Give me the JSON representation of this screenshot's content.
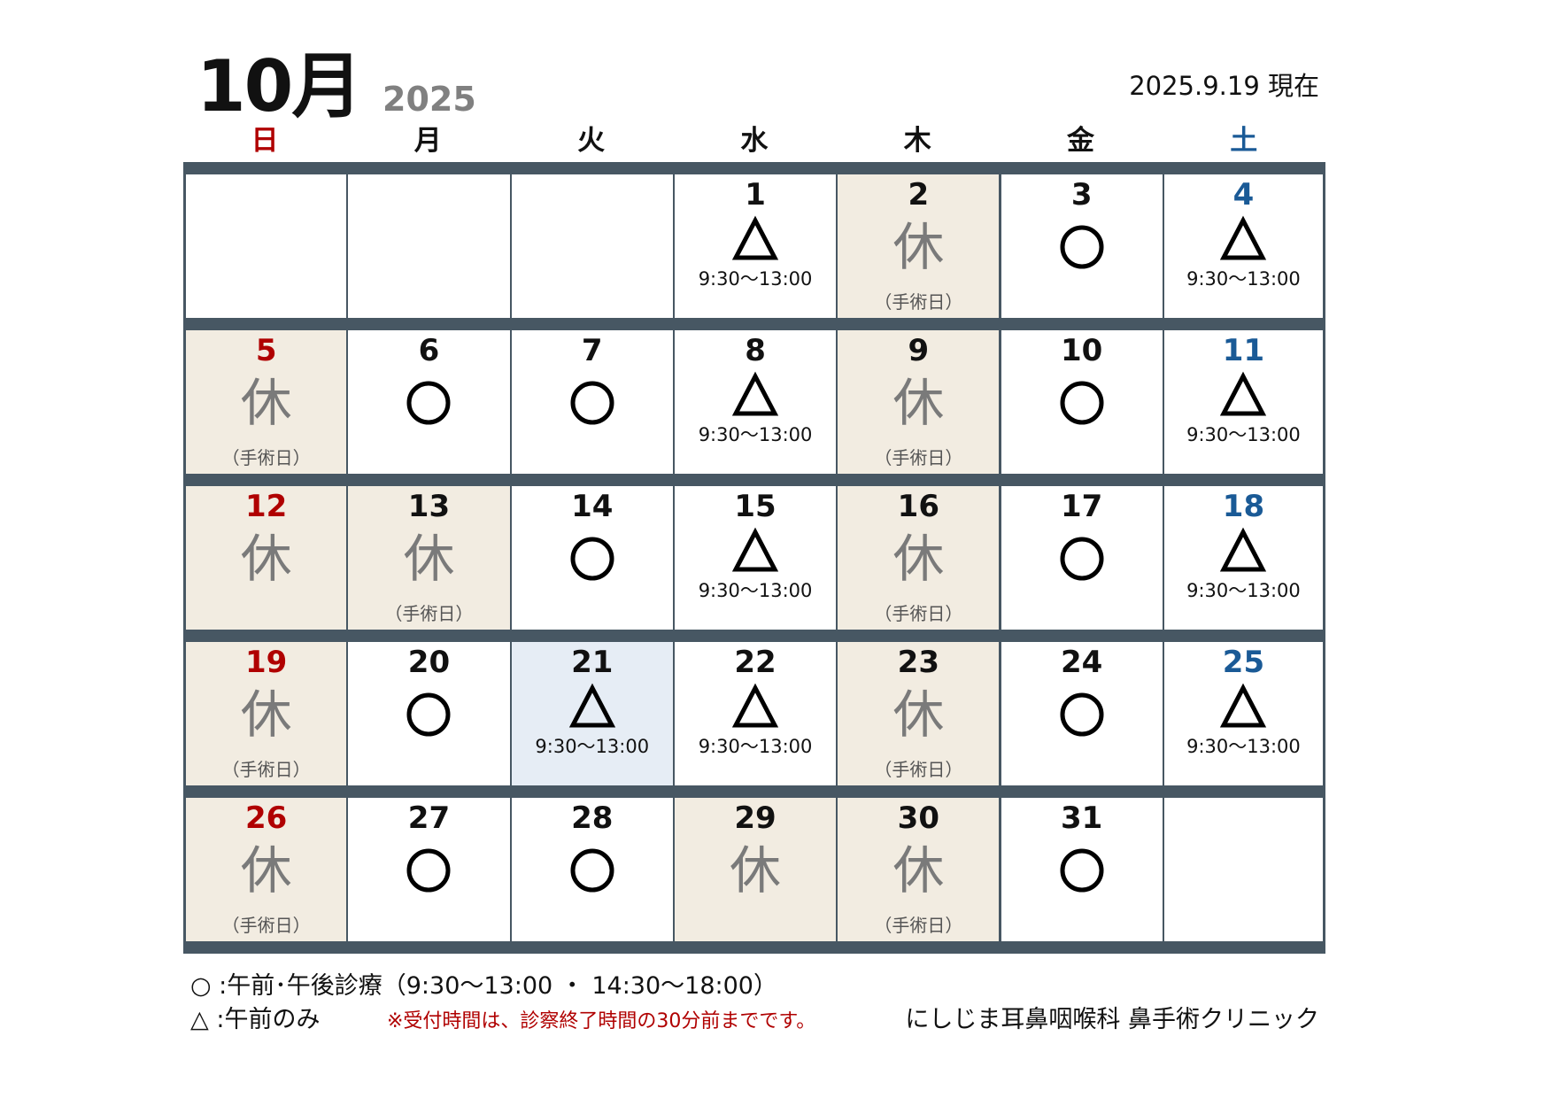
{
  "header": {
    "month": "10月",
    "year": "2025",
    "as_of": "2025.9.19 現在"
  },
  "weekdays": [
    {
      "label": "日",
      "color": "#b00000"
    },
    {
      "label": "月",
      "color": "#111111"
    },
    {
      "label": "火",
      "color": "#111111"
    },
    {
      "label": "水",
      "color": "#111111"
    },
    {
      "label": "木",
      "color": "#111111"
    },
    {
      "label": "金",
      "color": "#111111"
    },
    {
      "label": "土",
      "color": "#1a5a96"
    }
  ],
  "colors": {
    "bar": "#475763",
    "closed_bg": "#f2ece1",
    "today_bg": "#e6edf5",
    "sunday": "#b00000",
    "saturday": "#1a5a96"
  },
  "closed_label": "休",
  "cells": [
    null,
    null,
    null,
    {
      "day": "1",
      "status": "triangle",
      "time": "9:30〜13:00"
    },
    {
      "day": "2",
      "status": "closed",
      "note": "（手術日）"
    },
    {
      "day": "3",
      "status": "circle"
    },
    {
      "day": "4",
      "status": "triangle",
      "time": "9:30〜13:00"
    },
    {
      "day": "5",
      "status": "closed",
      "note": "（手術日）"
    },
    {
      "day": "6",
      "status": "circle"
    },
    {
      "day": "7",
      "status": "circle"
    },
    {
      "day": "8",
      "status": "triangle",
      "time": "9:30〜13:00"
    },
    {
      "day": "9",
      "status": "closed",
      "note": "（手術日）"
    },
    {
      "day": "10",
      "status": "circle"
    },
    {
      "day": "11",
      "status": "triangle",
      "time": "9:30〜13:00"
    },
    {
      "day": "12",
      "status": "closed"
    },
    {
      "day": "13",
      "status": "closed",
      "note": "（手術日）"
    },
    {
      "day": "14",
      "status": "circle"
    },
    {
      "day": "15",
      "status": "triangle",
      "time": "9:30〜13:00"
    },
    {
      "day": "16",
      "status": "closed",
      "note": "（手術日）"
    },
    {
      "day": "17",
      "status": "circle"
    },
    {
      "day": "18",
      "status": "triangle",
      "time": "9:30〜13:00"
    },
    {
      "day": "19",
      "status": "closed",
      "note": "（手術日）"
    },
    {
      "day": "20",
      "status": "circle"
    },
    {
      "day": "21",
      "status": "triangle",
      "time": "9:30〜13:00",
      "highlight": true
    },
    {
      "day": "22",
      "status": "triangle",
      "time": "9:30〜13:00"
    },
    {
      "day": "23",
      "status": "closed",
      "note": "（手術日）"
    },
    {
      "day": "24",
      "status": "circle"
    },
    {
      "day": "25",
      "status": "triangle",
      "time": "9:30〜13:00"
    },
    {
      "day": "26",
      "status": "closed",
      "note": "（手術日）"
    },
    {
      "day": "27",
      "status": "circle"
    },
    {
      "day": "28",
      "status": "circle"
    },
    {
      "day": "29",
      "status": "closed"
    },
    {
      "day": "30",
      "status": "closed",
      "note": "（手術日）"
    },
    {
      "day": "31",
      "status": "circle"
    },
    null
  ],
  "legend": {
    "circle": "○ :午前･午後診療（9:30〜13:00 ・ 14:30〜18:00）",
    "triangle": "△ :午前のみ",
    "notice": "※受付時間は、診察終了時間の30分前までです。",
    "clinic": "にしじま耳鼻咽喉科 鼻手術クリニック"
  }
}
